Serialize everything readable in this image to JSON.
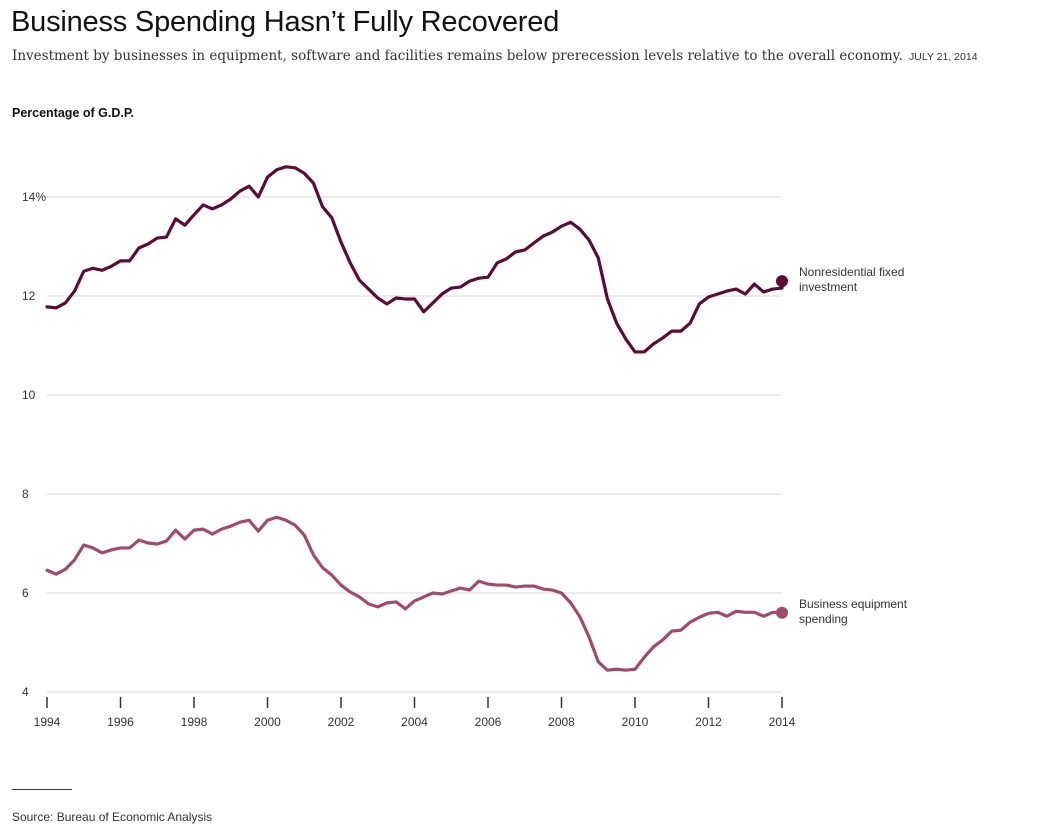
{
  "header": {
    "title": "Business Spending Hasn’t Fully Recovered",
    "subtitle": "Investment by businesses in equipment, software and facilities remains below prerecession levels relative to the overall economy.",
    "dateline": "JULY 21, 2014"
  },
  "footer": {
    "source": "Source: Bureau of Economic Analysis"
  },
  "colors": {
    "nonresidential": "#5e0a36",
    "equipment": "#a24a6c",
    "grid": "#e6e6e6",
    "axis": "#333333"
  },
  "chart_data": {
    "type": "line",
    "title": "Business Spending Hasn’t Fully Recovered",
    "ylabel": "Percentage of G.D.P.",
    "xlabel": "",
    "xlim": [
      1994,
      2014
    ],
    "ylim": [
      4,
      14.8
    ],
    "yticks": [
      {
        "value": 14,
        "label": "14%"
      },
      {
        "value": 12,
        "label": "12"
      },
      {
        "value": 10,
        "label": "10"
      },
      {
        "value": 8,
        "label": "8"
      },
      {
        "value": 6,
        "label": "6"
      },
      {
        "value": 4,
        "label": "4"
      }
    ],
    "xticks": [
      {
        "value": 1994,
        "label": "1994"
      },
      {
        "value": 1996,
        "label": "1996"
      },
      {
        "value": 1998,
        "label": "1998"
      },
      {
        "value": 2000,
        "label": "2000"
      },
      {
        "value": 2002,
        "label": "2002"
      },
      {
        "value": 2004,
        "label": "2004"
      },
      {
        "value": 2006,
        "label": "2006"
      },
      {
        "value": 2008,
        "label": "2008"
      },
      {
        "value": 2010,
        "label": "2010"
      },
      {
        "value": 2012,
        "label": "2012"
      },
      {
        "value": 2014,
        "label": "2014"
      }
    ],
    "grid": true,
    "legend": "direct labels at right end of each line",
    "x_start": 1994,
    "x_step": 0.25,
    "series": [
      {
        "name": "Nonresidential fixed investment",
        "label_lines": [
          "Nonresidential fixed",
          "investment"
        ],
        "color_key": "nonresidential",
        "values": [
          11.78,
          11.76,
          11.86,
          12.1,
          12.5,
          12.56,
          12.52,
          12.6,
          12.71,
          12.71,
          12.97,
          13.05,
          13.17,
          13.19,
          13.56,
          13.43,
          13.64,
          13.84,
          13.76,
          13.84,
          13.96,
          14.12,
          14.22,
          14.0,
          14.4,
          14.55,
          14.61,
          14.59,
          14.48,
          14.28,
          13.8,
          13.58,
          13.09,
          12.67,
          12.32,
          12.14,
          11.96,
          11.84,
          11.96,
          11.94,
          11.94,
          11.68,
          11.86,
          12.04,
          12.16,
          12.18,
          12.3,
          12.36,
          12.38,
          12.67,
          12.75,
          12.89,
          12.93,
          13.07,
          13.21,
          13.29,
          13.41,
          13.49,
          13.35,
          13.13,
          12.77,
          11.94,
          11.45,
          11.13,
          10.87,
          10.87,
          11.03,
          11.15,
          11.29,
          11.29,
          11.45,
          11.84,
          11.98,
          12.04,
          12.1,
          12.14,
          12.04,
          12.24,
          12.08,
          12.14,
          12.16,
          12.26,
          12.3
        ]
      },
      {
        "name": "Business equipment spending",
        "label_lines": [
          "Business equipment",
          "spending"
        ],
        "color_key": "equipment",
        "values": [
          6.46,
          6.38,
          6.48,
          6.67,
          6.97,
          6.91,
          6.81,
          6.87,
          6.91,
          6.91,
          7.07,
          7.01,
          6.99,
          7.05,
          7.27,
          7.09,
          7.27,
          7.29,
          7.19,
          7.29,
          7.35,
          7.43,
          7.47,
          7.25,
          7.47,
          7.53,
          7.47,
          7.37,
          7.17,
          6.77,
          6.51,
          6.36,
          6.16,
          6.02,
          5.92,
          5.78,
          5.72,
          5.8,
          5.82,
          5.68,
          5.84,
          5.92,
          6.0,
          5.98,
          6.04,
          6.1,
          6.06,
          6.24,
          6.18,
          6.16,
          6.16,
          6.12,
          6.14,
          6.14,
          6.08,
          6.06,
          6.0,
          5.8,
          5.52,
          5.11,
          4.61,
          4.44,
          4.46,
          4.44,
          4.46,
          4.7,
          4.91,
          5.05,
          5.23,
          5.25,
          5.41,
          5.51,
          5.59,
          5.61,
          5.53,
          5.63,
          5.61,
          5.61,
          5.53,
          5.61,
          5.6
        ]
      }
    ]
  }
}
